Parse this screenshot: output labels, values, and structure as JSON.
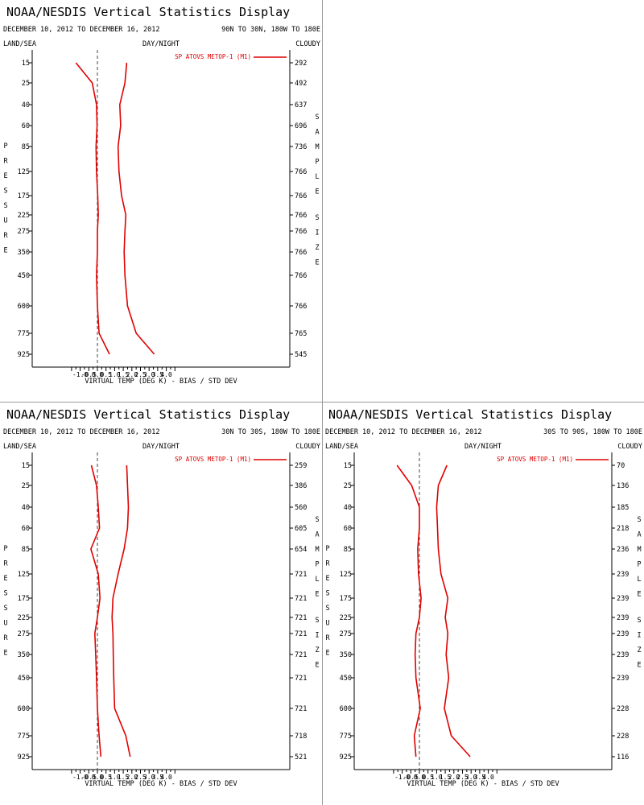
{
  "chart_data": [
    {
      "type": "line",
      "title": "NOAA/NESDIS Vertical Statistics Display",
      "date_range": "DECEMBER 10, 2012 TO DECEMBER 16, 2012",
      "region": "90N TO 30N, 180W TO 180E",
      "left_header": "LAND/SEA",
      "center_header": "DAY/NIGHT",
      "right_header": "CLOUDY",
      "xlabel": "VIRTUAL TEMP (DEG K) - BIAS / STD DEV",
      "ylabel": "PRESSURE",
      "y2label": "SAMPLE SIZE",
      "xlim": [
        -1.5,
        4.5
      ],
      "xticks": [
        "-1.0",
        "-0.5",
        "0.0",
        "0.5",
        "1.0",
        "1.5",
        "2.0",
        "2.5",
        "3.0",
        "3.5",
        "4.0"
      ],
      "pressure_levels": [
        "15",
        "25",
        "40",
        "60",
        "85",
        "125",
        "175",
        "225",
        "275",
        "350",
        "450",
        "600",
        "775",
        "925"
      ],
      "sample_size": [
        "292",
        "492",
        "637",
        "696",
        "736",
        "766",
        "766",
        "766",
        "766",
        "766",
        "766",
        "766",
        "765",
        "545"
      ],
      "series": [
        {
          "name": "SP ATOVS METOP-1 (M1)",
          "values": [
            -1.25,
            -0.3,
            -0.05,
            -0.02,
            -0.08,
            -0.05,
            0.02,
            0.05,
            0.0,
            0.0,
            -0.05,
            0.0,
            0.1,
            0.7
          ],
          "color": "#e00000"
        },
        {
          "values": [
            1.7,
            1.6,
            1.3,
            1.35,
            1.2,
            1.25,
            1.4,
            1.65,
            1.6,
            1.55,
            1.6,
            1.75,
            2.25,
            3.3
          ],
          "color": "#e00000"
        }
      ],
      "zero_line": true
    },
    {
      "type": "line",
      "title": "NOAA/NESDIS Vertical Statistics Display",
      "date_range": "DECEMBER 10, 2012 TO DECEMBER 16, 2012",
      "region": "30N TO 30S, 180W TO 180E",
      "left_header": "LAND/SEA",
      "center_header": "DAY/NIGHT",
      "right_header": "CLOUDY",
      "xlabel": "VIRTUAL TEMP (DEG K) - BIAS / STD DEV",
      "ylabel": "PRESSURE",
      "y2label": "SAMPLE SIZE",
      "xlim": [
        -1.5,
        4.5
      ],
      "xticks": [
        "-1.0",
        "-0.5",
        "0.0",
        "0.5",
        "1.0",
        "1.5",
        "2.0",
        "2.5",
        "3.0",
        "3.5",
        "4.0"
      ],
      "pressure_levels": [
        "15",
        "25",
        "40",
        "60",
        "85",
        "125",
        "175",
        "225",
        "275",
        "350",
        "450",
        "600",
        "775",
        "925"
      ],
      "sample_size": [
        "259",
        "386",
        "560",
        "605",
        "654",
        "721",
        "721",
        "721",
        "721",
        "721",
        "721",
        "721",
        "718",
        "521"
      ],
      "series": [
        {
          "name": "SP ATOVS METOP-1 (M1)",
          "values": [
            -0.35,
            -0.05,
            0.05,
            0.12,
            -0.38,
            0.05,
            0.15,
            0.0,
            -0.15,
            -0.1,
            -0.05,
            0.0,
            0.1,
            0.2
          ],
          "color": "#e00000"
        },
        {
          "values": [
            1.7,
            1.75,
            1.8,
            1.75,
            1.55,
            1.2,
            0.9,
            0.85,
            0.9,
            0.92,
            0.95,
            1.0,
            1.65,
            1.9
          ],
          "color": "#e00000"
        }
      ],
      "zero_line": true
    },
    {
      "type": "line",
      "title": "NOAA/NESDIS Vertical Statistics Display",
      "date_range": "DECEMBER 10, 2012 TO DECEMBER 16, 2012",
      "region": "30S TO 90S, 180W TO 180E",
      "left_header": "LAND/SEA",
      "center_header": "DAY/NIGHT",
      "right_header": "CLOUDY",
      "xlabel": "VIRTUAL TEMP (DEG K) - BIAS / STD DEV",
      "ylabel": "PRESSURE",
      "y2label": "SAMPLE SIZE",
      "xlim": [
        -1.5,
        4.5
      ],
      "xticks": [
        "-1.0",
        "-0.5",
        "0.0",
        "0.5",
        "1.0",
        "1.5",
        "2.0",
        "2.5",
        "3.0",
        "3.5",
        "4.0"
      ],
      "pressure_levels": [
        "15",
        "25",
        "40",
        "60",
        "85",
        "125",
        "175",
        "225",
        "275",
        "350",
        "450",
        "600",
        "775",
        "925"
      ],
      "sample_size": [
        "70",
        "136",
        "185",
        "218",
        "236",
        "239",
        "239",
        "239",
        "239",
        "239",
        "239",
        "228",
        "228",
        "116"
      ],
      "series": [
        {
          "name": "SP ATOVS METOP-1 (M1)",
          "values": [
            -1.3,
            -0.45,
            0.0,
            0.0,
            -0.1,
            -0.05,
            0.1,
            0.0,
            -0.2,
            -0.25,
            -0.2,
            0.05,
            -0.3,
            -0.2
          ],
          "color": "#e00000"
        },
        {
          "values": [
            1.6,
            1.1,
            1.0,
            1.05,
            1.1,
            1.25,
            1.65,
            1.5,
            1.65,
            1.55,
            1.7,
            1.45,
            1.85,
            2.95
          ],
          "color": "#e00000"
        }
      ],
      "zero_line": true
    }
  ]
}
